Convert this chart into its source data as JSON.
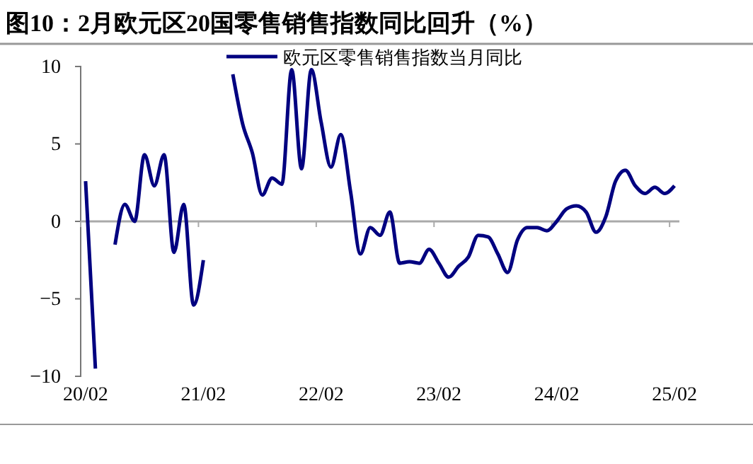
{
  "chart_data": {
    "type": "line",
    "title": "图10：2月欧元区20国零售销售指数同比回升（%）",
    "categories": [
      "20/02",
      null,
      null,
      null,
      null,
      null,
      null,
      null,
      null,
      null,
      null,
      null,
      "21/02",
      null,
      null,
      null,
      null,
      null,
      null,
      null,
      null,
      null,
      null,
      null,
      "22/02",
      null,
      null,
      null,
      null,
      null,
      null,
      null,
      null,
      null,
      null,
      null,
      "23/02",
      null,
      null,
      null,
      null,
      null,
      null,
      null,
      null,
      null,
      null,
      null,
      "24/02",
      null,
      null,
      null,
      null,
      null,
      null,
      null,
      null,
      null,
      null,
      null,
      "25/02"
    ],
    "series": [
      {
        "name": "欧元区零售销售指数当月同比",
        "color": "#000080",
        "values": [
          2.6,
          -9.5,
          null,
          -1.5,
          1.1,
          0.0,
          4.3,
          2.3,
          4.3,
          -2.0,
          1.1,
          -5.4,
          -2.5,
          null,
          null,
          9.5,
          6.3,
          4.4,
          1.7,
          2.8,
          2.4,
          9.8,
          3.4,
          9.8,
          6.4,
          3.5,
          5.6,
          1.9,
          -2.1,
          -0.4,
          -0.9,
          0.6,
          -2.7,
          -2.6,
          -2.7,
          -1.8,
          -2.7,
          -3.6,
          -2.9,
          -2.3,
          -0.9,
          -1.0,
          -2.1,
          -3.3,
          -1.2,
          -0.4,
          -0.4,
          -0.6,
          0.0,
          0.8,
          1.0,
          0.6,
          -0.7,
          0.3,
          2.6,
          3.3,
          2.3,
          1.8,
          2.2,
          1.8,
          2.3
        ]
      }
    ],
    "ylim": [
      -10,
      10
    ],
    "yticks": [
      -10,
      -5,
      0,
      5,
      10
    ],
    "legend": "top",
    "marker": "none",
    "line_style": "solid"
  }
}
